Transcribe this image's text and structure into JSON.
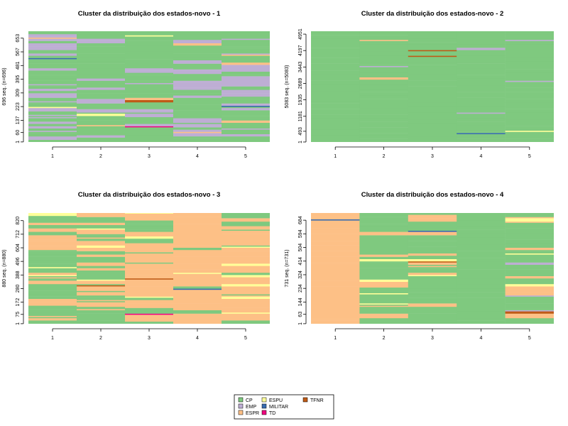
{
  "colors": {
    "CP": "#7fc97f",
    "EMP": "#beaed4",
    "ESPR": "#fdc086",
    "ESPU": "#ffff99",
    "MILITAR": "#386cb0",
    "TD": "#f0027f",
    "TFNR": "#bf5b17"
  },
  "chart_data": [
    {
      "type": "heatmap",
      "title": "Cluster da distribuição dos estados-novo -  1",
      "ylabel": "696 seq. (n=696)",
      "x": [
        "1",
        "2",
        "3",
        "4",
        "5"
      ],
      "yticks": [
        "1",
        "60",
        "137",
        "223",
        "309",
        "395",
        "481",
        "567",
        "653"
      ],
      "n": 696,
      "composition": [
        {
          "CP": 0.48,
          "EMP": 0.44,
          "ESPR": 0.04,
          "ESPU": 0.02,
          "MILITAR": 0.005,
          "TD": 0.005,
          "TFNR": 0.01
        },
        {
          "CP": 0.6,
          "EMP": 0.3,
          "ESPR": 0.05,
          "ESPU": 0.03,
          "MILITAR": 0.005,
          "TD": 0.005,
          "TFNR": 0.01
        },
        {
          "CP": 0.58,
          "EMP": 0.32,
          "ESPR": 0.04,
          "ESPU": 0.03,
          "MILITAR": 0.01,
          "TD": 0.005,
          "TFNR": 0.015
        },
        {
          "CP": 0.56,
          "EMP": 0.35,
          "ESPR": 0.04,
          "ESPU": 0.02,
          "MILITAR": 0.01,
          "TD": 0.005,
          "TFNR": 0.015
        },
        {
          "CP": 0.52,
          "EMP": 0.36,
          "ESPR": 0.06,
          "ESPU": 0.02,
          "MILITAR": 0.01,
          "TD": 0.01,
          "TFNR": 0.02
        }
      ]
    },
    {
      "type": "heatmap",
      "title": "Cluster da distribuição dos estados-novo -  2",
      "ylabel": "5083 seq. (n=5083)",
      "x": [
        "1",
        "2",
        "3",
        "4",
        "5"
      ],
      "yticks": [
        "1",
        "493",
        "1181",
        "1935",
        "2689",
        "3443",
        "4197",
        "4951"
      ],
      "n": 5083,
      "composition": [
        {
          "CP": 0.95,
          "EMP": 0.01,
          "ESPR": 0.005,
          "ESPU": 0.01,
          "MILITAR": 0.005,
          "TD": 0.01,
          "TFNR": 0.01
        },
        {
          "CP": 0.88,
          "EMP": 0.03,
          "ESPR": 0.02,
          "ESPU": 0.04,
          "MILITAR": 0.005,
          "TD": 0.01,
          "TFNR": 0.015
        },
        {
          "CP": 0.9,
          "EMP": 0.02,
          "ESPR": 0.01,
          "ESPU": 0.04,
          "MILITAR": 0.005,
          "TD": 0.01,
          "TFNR": 0.015
        },
        {
          "CP": 0.91,
          "EMP": 0.02,
          "ESPR": 0.01,
          "ESPU": 0.02,
          "MILITAR": 0.01,
          "TD": 0.015,
          "TFNR": 0.015
        },
        {
          "CP": 0.82,
          "EMP": 0.06,
          "ESPR": 0.03,
          "ESPU": 0.05,
          "MILITAR": 0.01,
          "TD": 0.015,
          "TFNR": 0.015
        }
      ]
    },
    {
      "type": "heatmap",
      "title": "Cluster da distribuição dos estados-novo -  3",
      "ylabel": "880 seq. (n=880)",
      "x": [
        "1",
        "2",
        "3",
        "4",
        "5"
      ],
      "yticks": [
        "1",
        "75",
        "172",
        "280",
        "388",
        "496",
        "604",
        "712",
        "820"
      ],
      "n": 880,
      "composition": [
        {
          "CP": 0.5,
          "EMP": 0.01,
          "ESPR": 0.38,
          "ESPU": 0.07,
          "MILITAR": 0.005,
          "TD": 0.015,
          "TFNR": 0.02
        },
        {
          "CP": 0.42,
          "EMP": 0.01,
          "ESPR": 0.46,
          "ESPU": 0.07,
          "MILITAR": 0.005,
          "TD": 0.01,
          "TFNR": 0.025
        },
        {
          "CP": 0.3,
          "EMP": 0.01,
          "ESPR": 0.58,
          "ESPU": 0.07,
          "MILITAR": 0.005,
          "TD": 0.01,
          "TFNR": 0.025
        },
        {
          "CP": 0.05,
          "EMP": 0.005,
          "ESPR": 0.9,
          "ESPU": 0.02,
          "MILITAR": 0.005,
          "TD": 0.005,
          "TFNR": 0.015
        },
        {
          "CP": 0.25,
          "EMP": 0.01,
          "ESPR": 0.67,
          "ESPU": 0.05,
          "MILITAR": 0.005,
          "TD": 0.005,
          "TFNR": 0.01
        }
      ]
    },
    {
      "type": "heatmap",
      "title": "Cluster da distribuição dos estados-novo -  4",
      "ylabel": "731 seq. (n=731)",
      "x": [
        "1",
        "2",
        "3",
        "4",
        "5"
      ],
      "yticks": [
        "1",
        "63",
        "144",
        "234",
        "324",
        "414",
        "504",
        "594",
        "684"
      ],
      "n": 731,
      "composition": [
        {
          "CP": 0.04,
          "EMP": 0.005,
          "ESPR": 0.92,
          "ESPU": 0.02,
          "MILITAR": 0.005,
          "TD": 0.005,
          "TFNR": 0.005
        },
        {
          "CP": 0.55,
          "EMP": 0.03,
          "ESPR": 0.3,
          "ESPU": 0.08,
          "MILITAR": 0.01,
          "TD": 0.01,
          "TFNR": 0.02
        },
        {
          "CP": 0.58,
          "EMP": 0.02,
          "ESPR": 0.3,
          "ESPU": 0.07,
          "MILITAR": 0.01,
          "TD": 0.005,
          "TFNR": 0.015
        },
        {
          "CP": 0.95,
          "EMP": 0.01,
          "ESPR": 0.02,
          "ESPU": 0.01,
          "MILITAR": 0.005,
          "TD": 0.0,
          "TFNR": 0.005
        },
        {
          "CP": 0.52,
          "EMP": 0.05,
          "ESPR": 0.3,
          "ESPU": 0.06,
          "MILITAR": 0.02,
          "TD": 0.03,
          "TFNR": 0.02
        }
      ]
    }
  ],
  "legend": {
    "position": "bottom-center",
    "entries": [
      "CP",
      "EMP",
      "ESPR",
      "ESPU",
      "MILITAR",
      "TD",
      "TFNR"
    ]
  }
}
